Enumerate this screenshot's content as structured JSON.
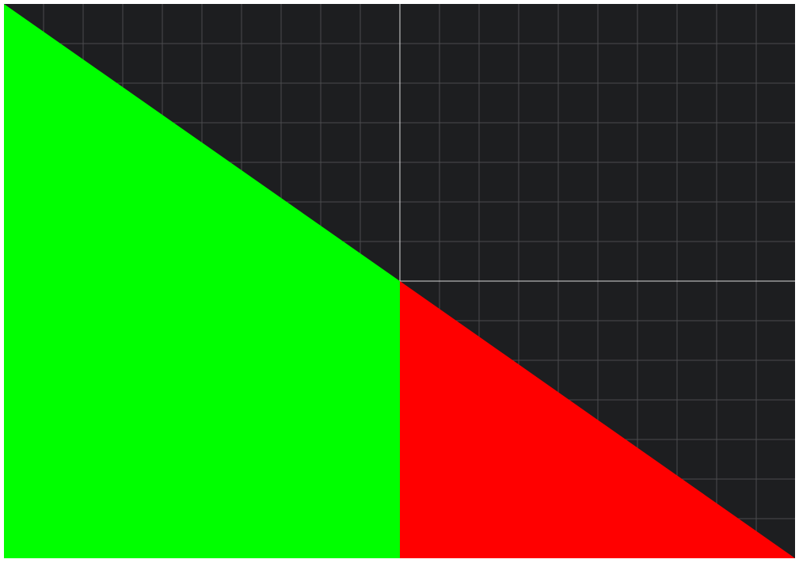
{
  "canvas": {
    "background_color": "#1d1e20",
    "grid": true,
    "grid_color": "#4a4b4e",
    "axis_color": "#d8d8d8"
  },
  "shapes": [
    {
      "name": "green-triangle",
      "fill": "#00ff00"
    },
    {
      "name": "red-triangle",
      "fill": "#ff0000"
    }
  ]
}
